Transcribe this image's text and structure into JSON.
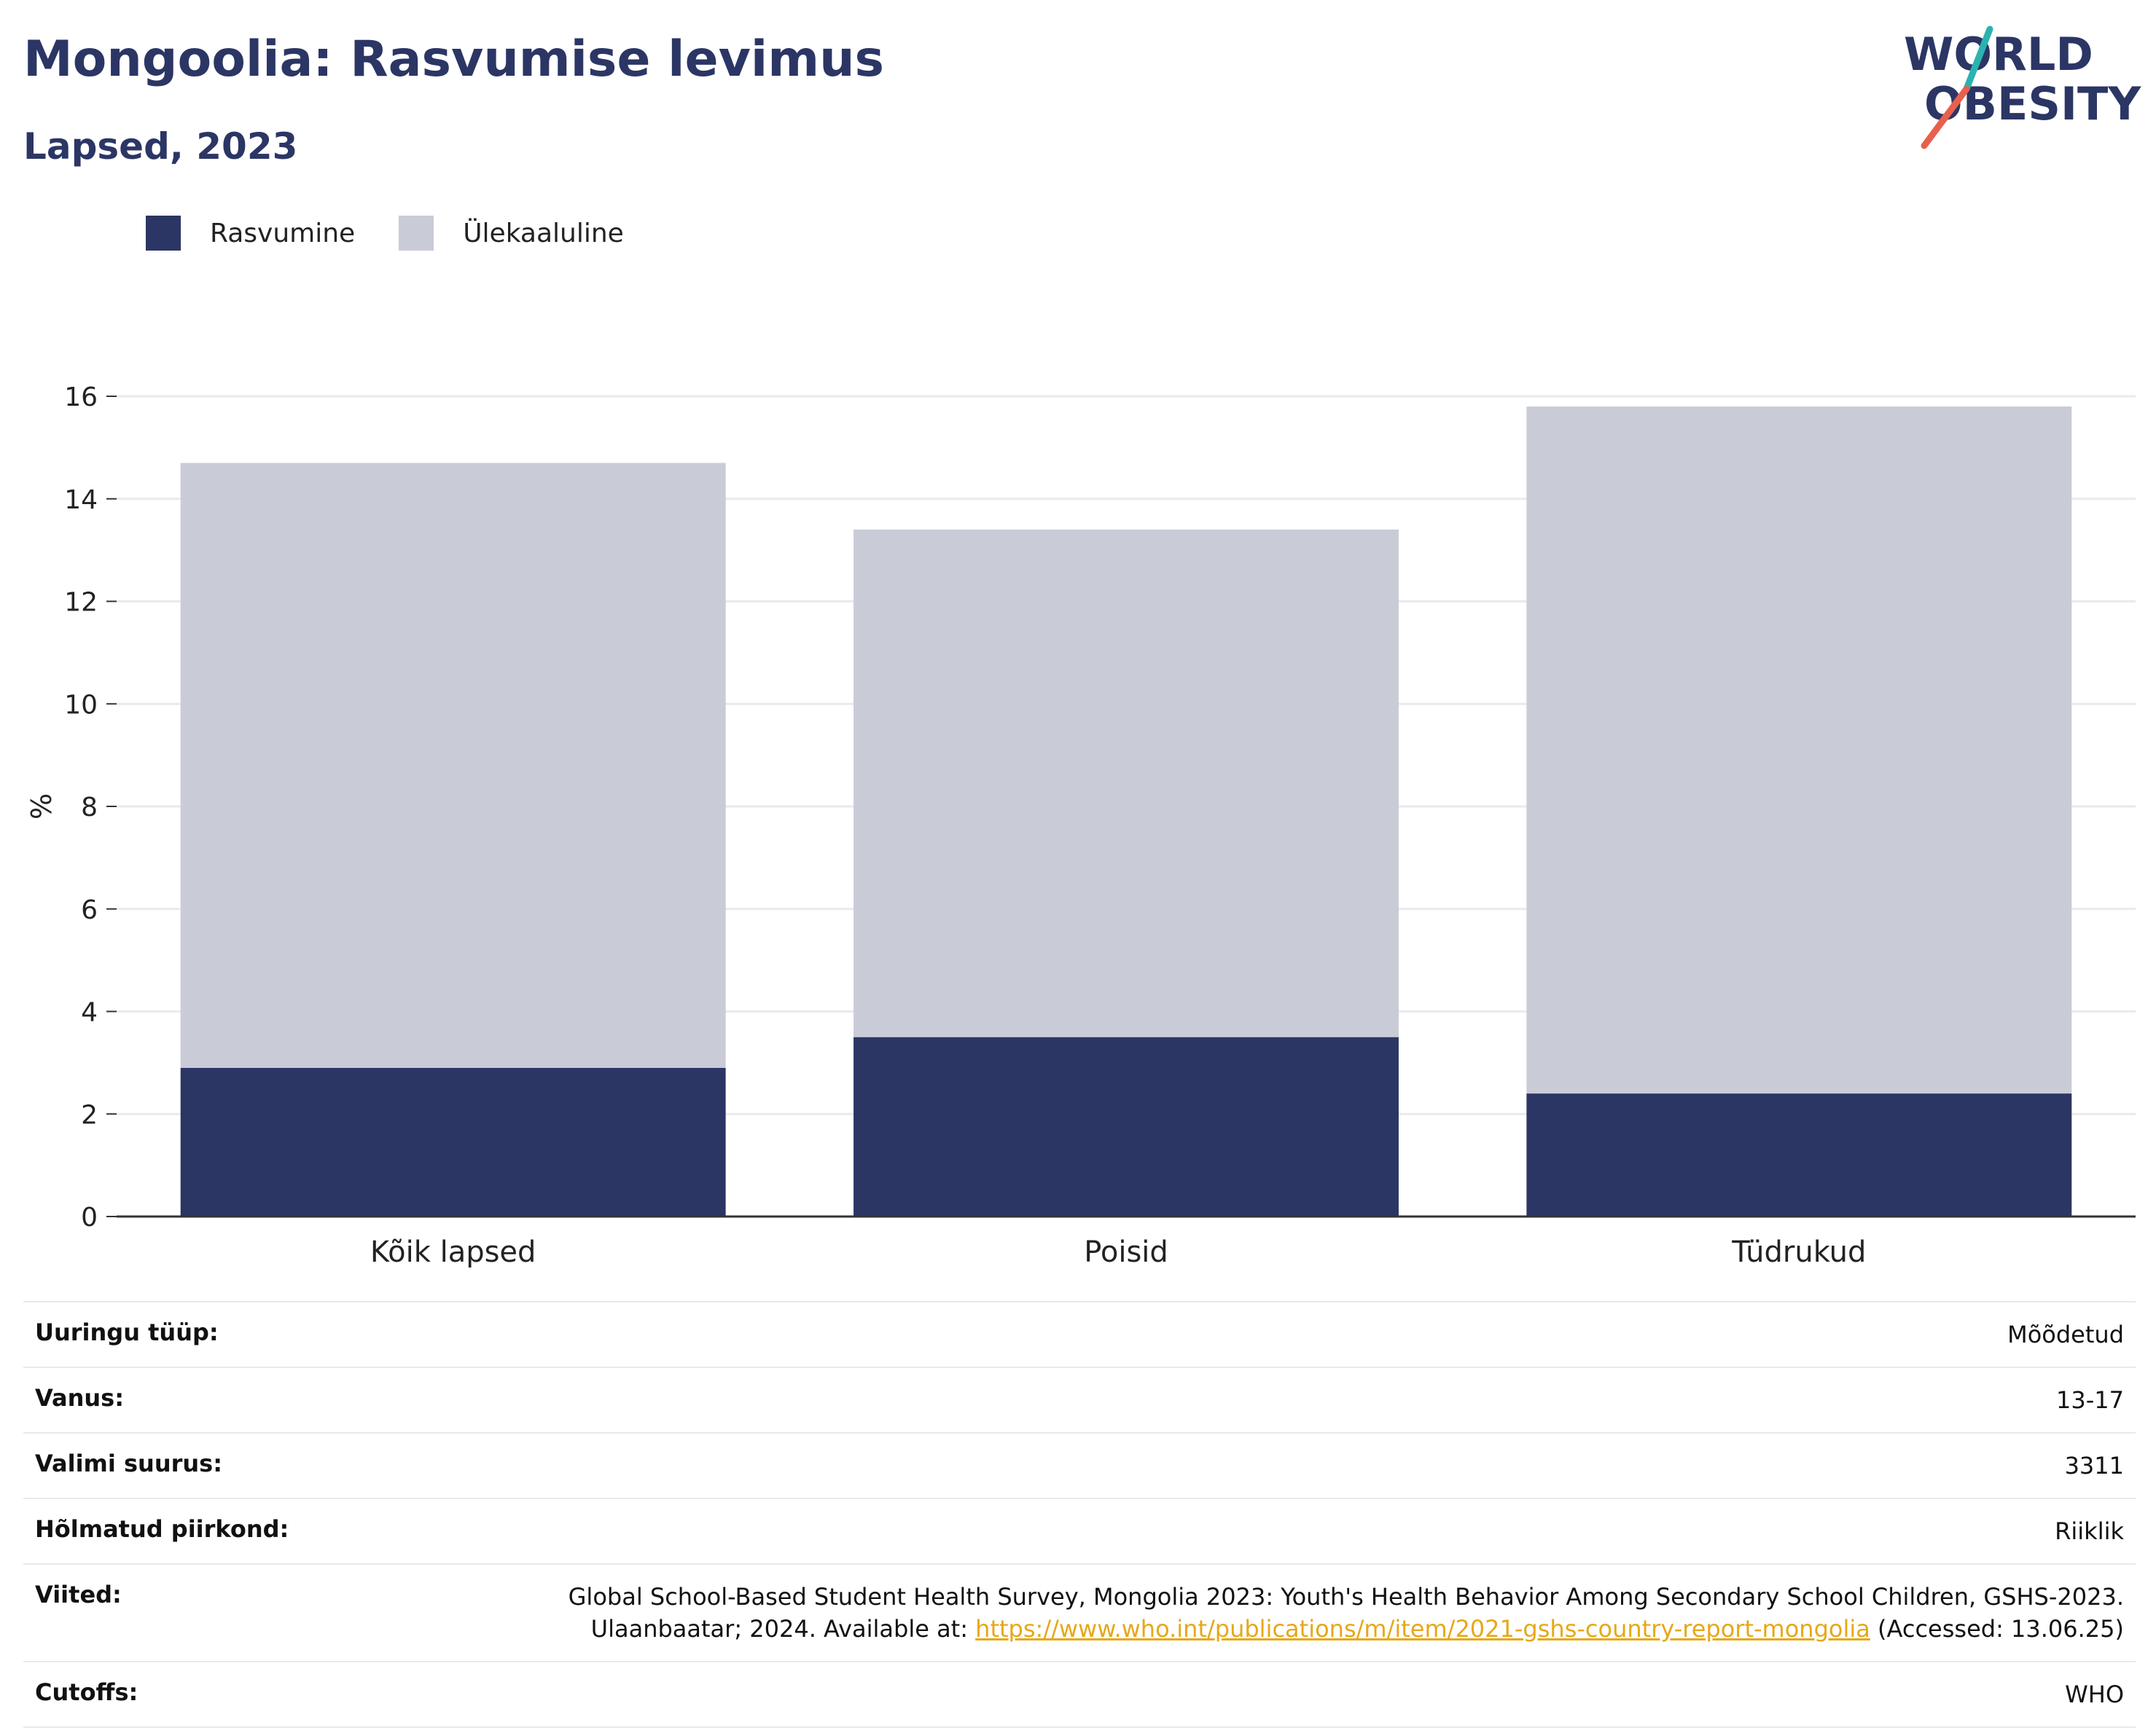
{
  "header": {
    "title": "Mongoolia: Rasvumise levimus",
    "subtitle": "Lapsed, 2023"
  },
  "logo": {
    "line1": "WORLD",
    "line2": "OBESITY",
    "accent_colors": [
      "#2ab3b1",
      "#e8604c"
    ]
  },
  "legend": [
    {
      "label": "Rasvumine",
      "color": "#2b3665"
    },
    {
      "label": "Ülekaaluline",
      "color": "#c9cbd7"
    }
  ],
  "chart_data": {
    "type": "bar",
    "stacked": true,
    "categories": [
      "Kõik lapsed",
      "Poisid",
      "Tüdrukud"
    ],
    "series": [
      {
        "name": "Rasvumine",
        "values": [
          2.9,
          3.5,
          2.4
        ],
        "color": "#2b3665"
      },
      {
        "name": "Ülekaaluline",
        "values": [
          11.8,
          9.9,
          13.4
        ],
        "color": "#c9cbd7"
      }
    ],
    "ylabel": "%",
    "xlabel": "",
    "ylim": [
      0,
      16
    ],
    "yticks": [
      0,
      2,
      4,
      6,
      8,
      10,
      12,
      14,
      16
    ],
    "grid": true,
    "legend_position": "top-left"
  },
  "details": {
    "survey_type": {
      "label": "Uuringu tüüp:",
      "value": "Mõõdetud"
    },
    "age": {
      "label": "Vanus:",
      "value": "13-17"
    },
    "sample_size": {
      "label": "Valimi suurus:",
      "value": "3311"
    },
    "area": {
      "label": "Hõlmatud piirkond:",
      "value": "Riiklik"
    },
    "references": {
      "label": "Viited:",
      "line1": "Global School-Based Student Health Survey, Mongolia 2023: Youth's Health Behavior Among Secondary School Children, GSHS-2023.",
      "line2_prefix": "Ulaanbaatar; 2024. Available at: ",
      "link": "https://www.who.int/publications/m/item/2021-gshs-country-report-mongolia",
      "line2_suffix": " (Accessed: 13.06.25)"
    },
    "cutoffs": {
      "label": "Cutoffs:",
      "value": "WHO"
    }
  }
}
